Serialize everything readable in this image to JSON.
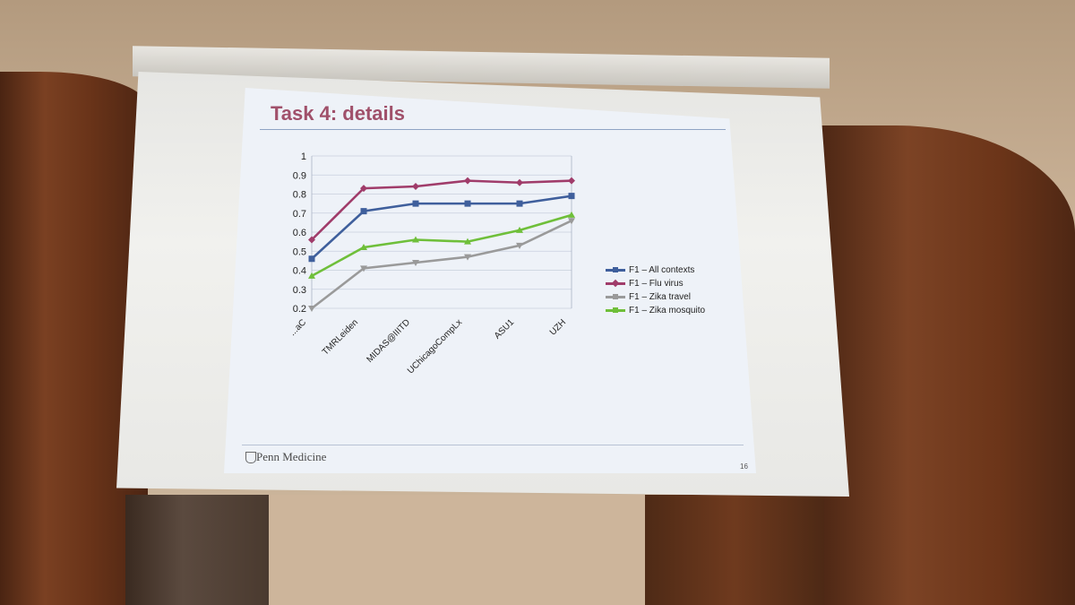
{
  "slide": {
    "title": "Task 4: details",
    "footer_brand": "Penn Medicine",
    "page_number": "16"
  },
  "colors": {
    "title": "#a0506a",
    "series": [
      "#3f5f9c",
      "#a03c6a",
      "#9a9a9a",
      "#6fbf3a"
    ]
  },
  "chart_data": {
    "type": "line",
    "categories": [
      "...aC",
      "TMRLeiden",
      "MIDAS@IIITD",
      "UChicagoCompLx",
      "ASU1",
      "UZH"
    ],
    "y_ticks": [
      "1",
      "0.9",
      "0.8",
      "0.7",
      "0.6",
      "0.5",
      "0.4",
      "0.3",
      "0.2"
    ],
    "ylim": [
      0.2,
      1.0
    ],
    "grid": true,
    "legend_position": "right",
    "series": [
      {
        "name": "F1 – All contexts",
        "marker": "square",
        "values": [
          0.46,
          0.71,
          0.75,
          0.75,
          0.75,
          0.79
        ]
      },
      {
        "name": "F1 – Flu virus",
        "marker": "diamond",
        "values": [
          0.56,
          0.83,
          0.84,
          0.87,
          0.86,
          0.87
        ]
      },
      {
        "name": "F1 – Zika travel",
        "marker": "triangle-down",
        "values": [
          0.2,
          0.41,
          0.44,
          0.47,
          0.53,
          0.66
        ]
      },
      {
        "name": "F1 – Zika mosquito",
        "marker": "triangle-up",
        "values": [
          0.37,
          0.52,
          0.56,
          0.55,
          0.61,
          0.69
        ]
      }
    ]
  }
}
